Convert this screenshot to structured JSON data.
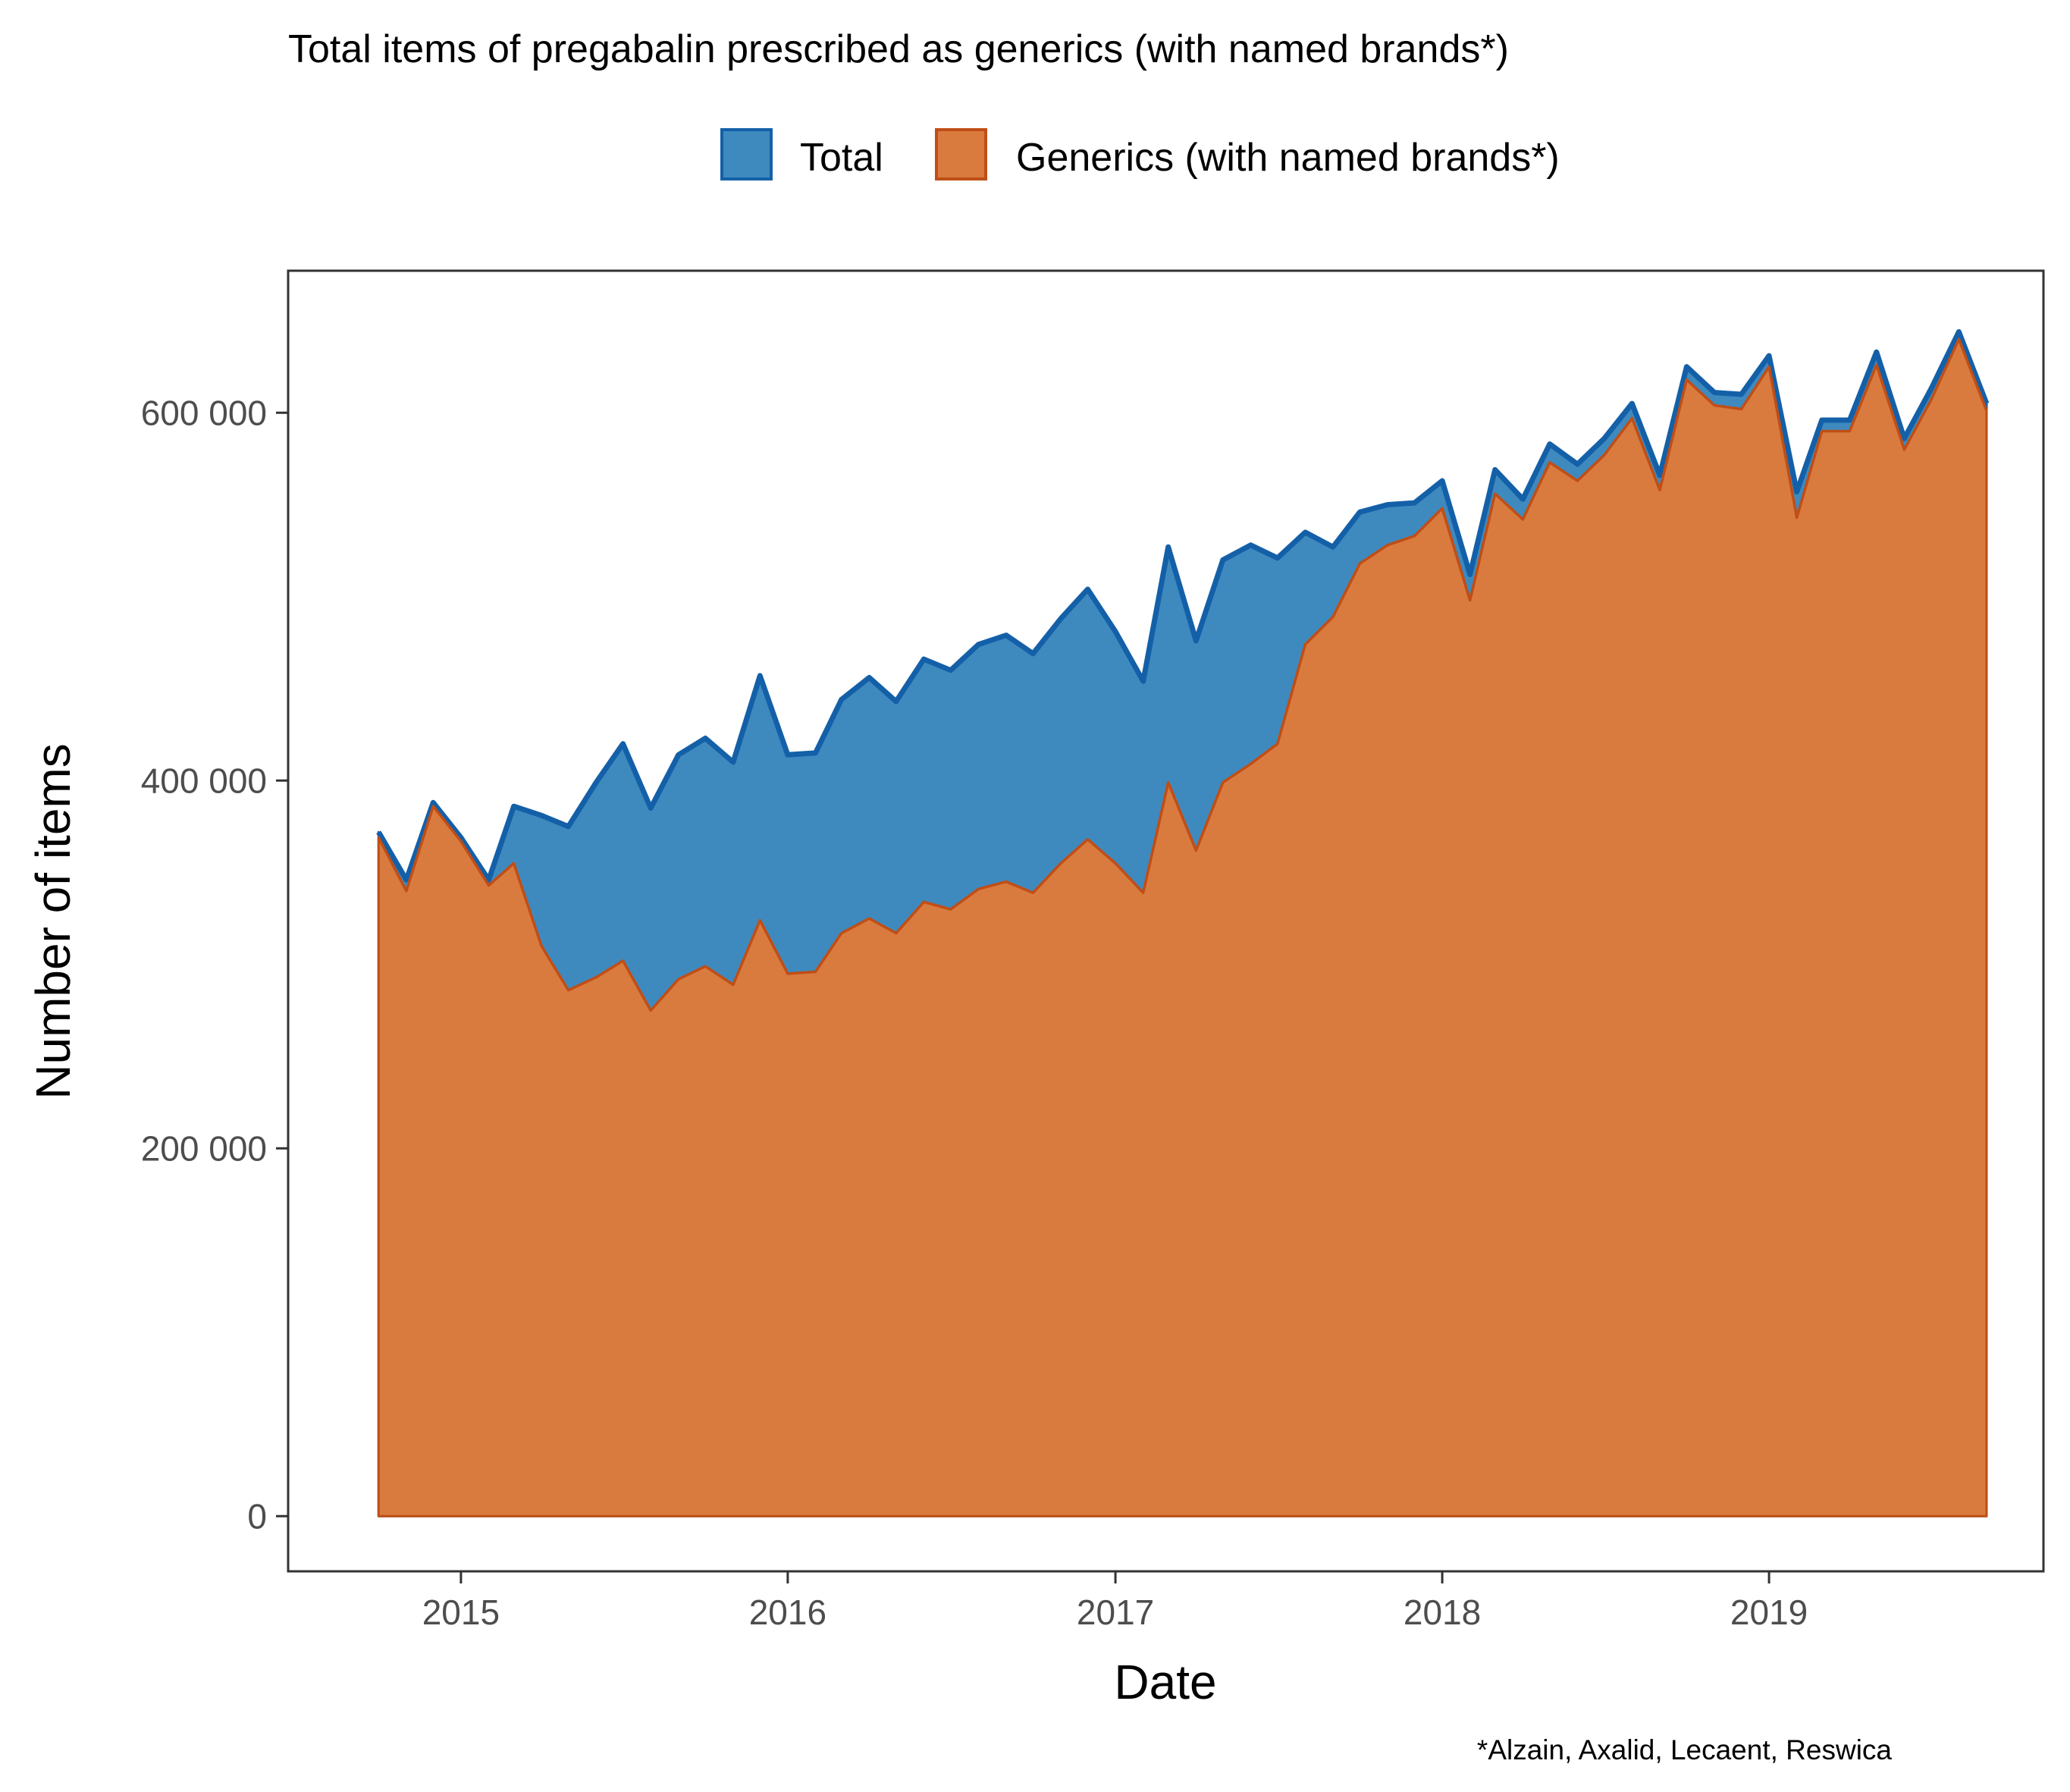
{
  "chart_data": {
    "type": "area",
    "title": "Total items of pregabalin prescribed as generics (with named brands*)",
    "xlabel": "Date",
    "ylabel": "Number of items",
    "caption": "*Alzain, Axalid, Lecaent, Reswica",
    "x_ticks": [
      "2015",
      "2016",
      "2017",
      "2018",
      "2019"
    ],
    "y_ticks": [
      "0",
      "200 000",
      "400 000",
      "600 000"
    ],
    "ylim": [
      -30000,
      675000
    ],
    "xlim": [
      "2014-06-22",
      "2019-11-16"
    ],
    "grid": false,
    "legend_position": "top",
    "colors": {
      "total_fill": "#3e8abf",
      "total_line": "#1460a8",
      "generics_fill": "#d97b3e",
      "generics_line": "#c04e16"
    },
    "x": [
      "2014-10",
      "2014-11",
      "2014-12",
      "2015-01",
      "2015-02",
      "2015-03",
      "2015-04",
      "2015-05",
      "2015-06",
      "2015-07",
      "2015-08",
      "2015-09",
      "2015-10",
      "2015-11",
      "2015-12",
      "2016-01",
      "2016-02",
      "2016-03",
      "2016-04",
      "2016-05",
      "2016-06",
      "2016-07",
      "2016-08",
      "2016-09",
      "2016-10",
      "2016-11",
      "2016-12",
      "2017-01",
      "2017-02",
      "2017-03",
      "2017-04",
      "2017-05",
      "2017-06",
      "2017-07",
      "2017-08",
      "2017-09",
      "2017-10",
      "2017-11",
      "2017-12",
      "2018-01",
      "2018-02",
      "2018-03",
      "2018-04",
      "2018-05",
      "2018-06",
      "2018-07",
      "2018-08",
      "2018-09",
      "2018-10",
      "2018-11",
      "2018-12",
      "2019-01",
      "2019-02",
      "2019-03",
      "2019-04",
      "2019-05",
      "2019-06",
      "2019-07",
      "2019-08",
      "2019-09"
    ],
    "series": [
      {
        "name": "Total",
        "values": [
          372000,
          346000,
          388000,
          369000,
          346000,
          386000,
          381000,
          375000,
          399000,
          420000,
          385000,
          414000,
          423000,
          410000,
          457000,
          414000,
          415000,
          444000,
          456000,
          443000,
          466000,
          460000,
          474000,
          479000,
          469000,
          488000,
          504000,
          481000,
          454000,
          527000,
          476000,
          520000,
          528000,
          521000,
          535000,
          527000,
          546000,
          550000,
          551000,
          563000,
          512000,
          569000,
          553000,
          583000,
          572000,
          586000,
          605000,
          566000,
          625000,
          611000,
          610000,
          631000,
          557000,
          596000,
          596000,
          633000,
          586000,
          613000,
          644000,
          605000
        ]
      },
      {
        "name": "Generics (with named brands*)",
        "values": [
          369000,
          340000,
          386000,
          367000,
          343000,
          355000,
          310000,
          286000,
          293000,
          302000,
          275000,
          292000,
          299000,
          289000,
          324000,
          295000,
          296000,
          317000,
          325000,
          317000,
          334000,
          330000,
          341000,
          345000,
          339000,
          355000,
          368000,
          355000,
          339000,
          399000,
          362000,
          399000,
          409000,
          420000,
          474000,
          489000,
          518000,
          528000,
          533000,
          548000,
          498000,
          556000,
          542000,
          573000,
          563000,
          577000,
          597000,
          558000,
          618000,
          604000,
          602000,
          625000,
          543000,
          590000,
          590000,
          626000,
          580000,
          607000,
          640000,
          601000
        ]
      }
    ]
  }
}
